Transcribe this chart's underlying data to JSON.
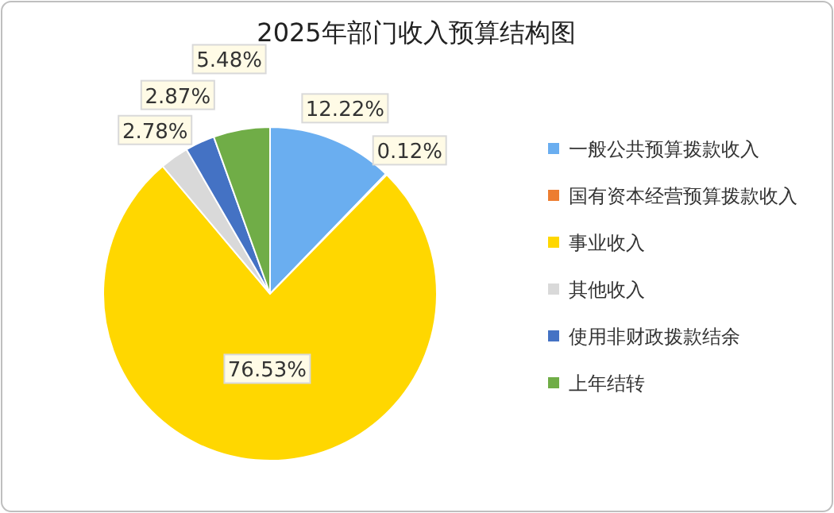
{
  "chart_data": {
    "type": "pie",
    "title": "2025年部门收入预算结构图",
    "categories": [
      "一般公共预算拨款收入",
      "国有资本经营预算拨款收入",
      "事业收入",
      "其他收入",
      "使用非财政拨款结余",
      "上年结转"
    ],
    "values": [
      12.22,
      0.12,
      76.53,
      2.78,
      2.87,
      5.48
    ],
    "colors": [
      "#6aaef0",
      "#ed7d31",
      "#ffd700",
      "#d9d9d9",
      "#4472c4",
      "#70ad47"
    ],
    "value_labels": [
      "12.22%",
      "0.12%",
      "76.53%",
      "2.78%",
      "2.87%",
      "5.48%"
    ],
    "legend": "right"
  }
}
